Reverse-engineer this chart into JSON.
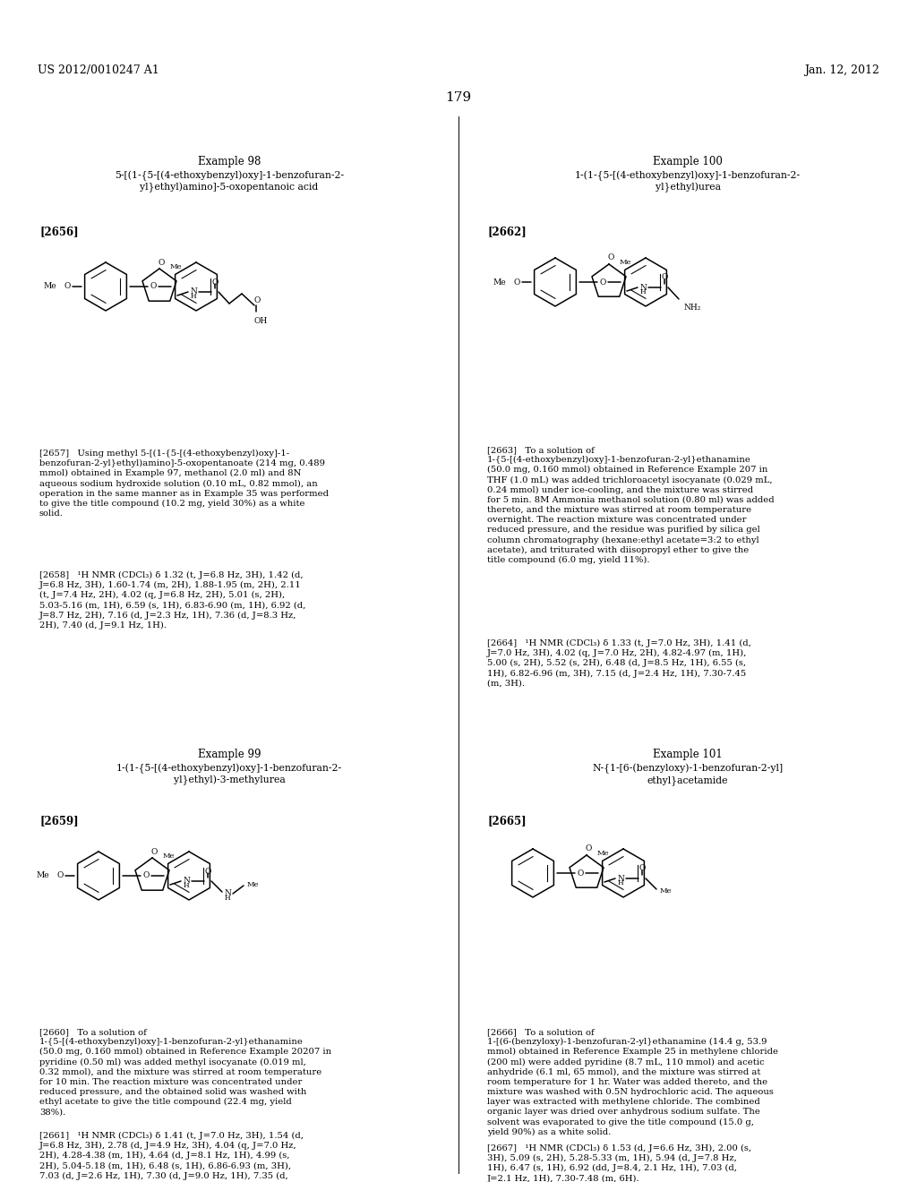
{
  "bg_color": "#ffffff",
  "text_color": "#000000",
  "header_left": "US 2012/0010247 A1",
  "header_right": "Jan. 12, 2012",
  "page_number": "179",
  "example98_title": "Example 98",
  "example98_subtitle": "5-[(1-{5-[(4-ethoxybenzyl)oxy]-1-benzofuran-2-\nyl}ethyl)amino]-5-oxopentanoic acid",
  "example98_tag": "[2656]",
  "example100_title": "Example 100",
  "example100_subtitle": "1-(1-{5-[(4-ethoxybenzyl)oxy]-1-benzofuran-2-\nyl}ethyl)urea",
  "example100_tag": "[2662]",
  "example99_title": "Example 99",
  "example99_subtitle": "1-(1-{5-[(4-ethoxybenzyl)oxy]-1-benzofuran-2-\nyl}ethyl)-3-methylurea",
  "example99_tag": "[2659]",
  "example101_title": "Example 101",
  "example101_subtitle": "N-{1-[6-(benzyloxy)-1-benzofuran-2-yl]\nethyl}acetamide",
  "example101_tag": "[2665]",
  "p2657": "[2657]   Using methyl 5-[(1-{5-[(4-ethoxybenzyl)oxy]-1-benzofuran-2-yl}ethyl)amino]-5-oxopentanoate (214 mg, 0.489 mmol) obtained in Example 97, methanol (2.0 ml) and 8N aqueous sodium hydroxide solution (0.10 mL, 0.82 mmol), an operation in the same manner as in Example 35 was performed to give the title compound (10.2 mg, yield 30%) as a white solid.",
  "p2658": "[2658]   ¹H NMR (CDCl₃) δ 1.32 (t, J=6.8 Hz, 3H), 1.42 (d, J=6.8 Hz, 3H), 1.60-1.74 (m, 2H), 1.88-1.95 (m, 2H), 2.11 (t, J=7.4 Hz, 2H), 4.02 (q, J=6.8 Hz, 2H), 5.01 (s, 2H), 5.03-5.16 (m, 1H), 6.59 (s, 1H), 6.83-6.90 (m, 1H), 6.92 (d, J=8.7 Hz, 2H), 7.16 (d, J=2.3 Hz, 1H), 7.36 (d, J=8.3 Hz, 2H), 7.40 (d, J=9.1 Hz, 1H).",
  "p2663": "[2663]   To a solution of 1-{5-[(4-ethoxybenzyl)oxy]-1-benzofuran-2-yl}ethanamine (50.0 mg, 0.160 mmol) obtained in Reference Example 207 in THF (1.0 mL) was added trichloroacetyl isocyanate (0.029 mL, 0.24 mmol) under ice-cooling, and the mixture was stirred for 5 min. 8M Ammonia methanol solution (0.80 ml) was added thereto, and the mixture was stirred at room temperature overnight. The reaction mixture was concentrated under reduced pressure, and the residue was purified by silica gel column chromatography (hexane:ethyl acetate=3:2 to ethyl acetate), and triturated with diisopropyl ether to give the title compound (6.0 mg, yield 11%).",
  "p2664": "[2664]   ¹H NMR (CDCl₃) δ 1.33 (t, J=7.0 Hz, 3H), 1.41 (d, J=7.0 Hz, 3H), 4.02 (q, J=7.0 Hz, 2H), 4.82-4.97 (m, 1H), 5.00 (s, 2H), 5.52 (s, 2H), 6.48 (d, J=8.5 Hz, 1H), 6.55 (s, 1H), 6.82-6.96 (m, 3H), 7.15 (d, J=2.4 Hz, 1H), 7.30-7.45 (m, 3H).",
  "p2660": "[2660]   To a solution of 1-{5-[(4-ethoxybenzyl)oxy]-1-benzofuran-2-yl}ethanamine (50.0 mg, 0.160 mmol) obtained in Reference Example 20207 in pyridine (0.50 ml) was added methyl isocyanate (0.019 ml, 0.32 mmol), and the mixture was stirred at room temperature for 10 min. The reaction mixture was concentrated under reduced pressure, and the obtained solid was washed with ethyl acetate to give the title compound (22.4 mg, yield 38%).",
  "p2661": "[2661]   ¹H NMR (CDCl₃) δ 1.41 (t, J=7.0 Hz, 3H), 1.54 (d, J=6.8 Hz, 3H), 2.78 (d, J=4.9 Hz, 3H), 4.04 (q, J=7.0 Hz, 2H), 4.28-4.38 (m, 1H), 4.64 (d, J=8.1 Hz, 1H), 4.99 (s, 2H), 5.04-5.18 (m, 1H), 6.48 (s, 1H), 6.86-6.93 (m, 3H), 7.03 (d, J=2.6 Hz, 1H), 7.30 (d, J=9.0 Hz, 1H), 7.35 (d, J=8.8 Hz, 2H).",
  "p2666": "[2666]   To a solution of 1-[(6-(benzyloxy)-1-benzofuran-2-yl}ethanamine (14.4 g, 53.9 mmol) obtained in Reference Example 25 in methylene chloride (200 ml) were added pyridine (8.7 mL, 110 mmol) and acetic anhydride (6.1 ml, 65 mmol), and the mixture was stirred at room temperature for 1 hr. Water was added thereto, and the mixture was washed with 0.5N hydrochloric acid. The aqueous layer was extracted with methylene chloride. The combined organic layer was dried over anhydrous sodium sulfate. The solvent was evaporated to give the title compound (15.0 g, yield 90%) as a white solid.",
  "p2667": "[2667]   ¹H NMR (CDCl₃) δ 1.53 (d, J=6.6 Hz, 3H), 2.00 (s, 3H), 5.09 (s, 2H), 5.28-5.33 (m, 1H), 5.94 (d, J=7.8 Hz, 1H), 6.47 (s, 1H), 6.92 (dd, J=8.4, 2.1 Hz, 1H), 7.03 (d, J=2.1 Hz, 1H), 7.30-7.48 (m, 6H)."
}
